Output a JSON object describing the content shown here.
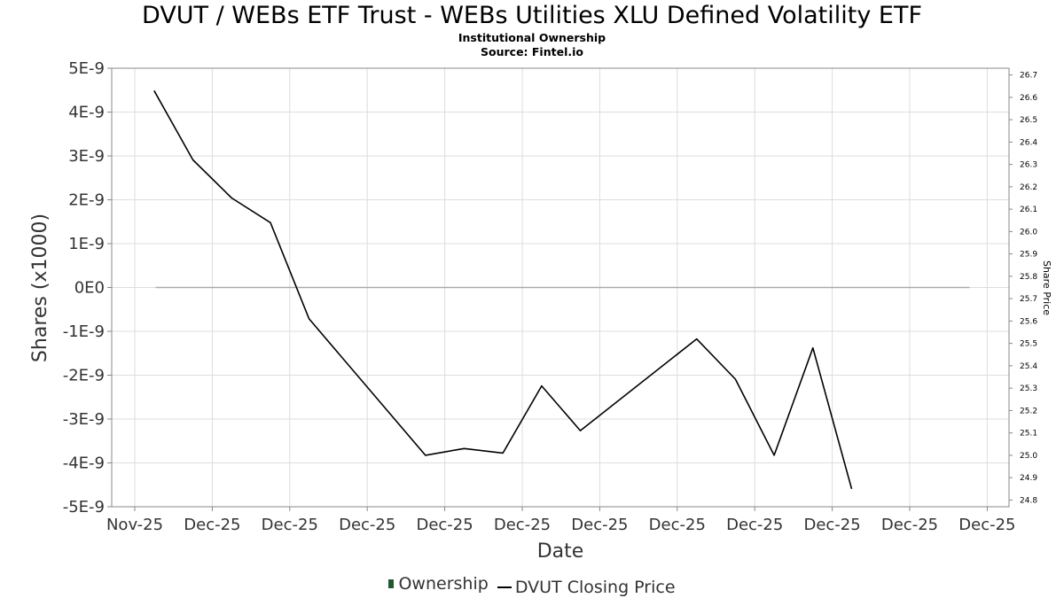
{
  "title": "DVUT / WEBs ETF Trust - WEBs Utilities XLU Defined Volatility ETF",
  "subtitle": "Institutional Ownership",
  "source": "Source: Fintel.io",
  "chart_data": {
    "type": "line",
    "xlabel": "Date",
    "ylabel": "Shares (x1000)",
    "y2label": "Share Price",
    "x_tick_labels": [
      "Nov-25",
      "Dec-25",
      "Dec-25",
      "Dec-25",
      "Dec-25",
      "Dec-25",
      "Dec-25",
      "Dec-25",
      "Dec-25",
      "Dec-25",
      "Dec-25",
      "Dec-25"
    ],
    "y_tick_labels": [
      "5E-9",
      "4E-9",
      "3E-9",
      "2E-9",
      "1E-9",
      "0E0",
      "-1E-9",
      "-2E-9",
      "-3E-9",
      "-4E-9",
      "-5E-9"
    ],
    "ylim": [
      -5e-09,
      5e-09
    ],
    "y2_tick_labels": [
      "24.8",
      "24.9",
      "25.0",
      "25.1",
      "25.2",
      "25.3",
      "25.4",
      "25.5",
      "25.6",
      "25.7",
      "25.8",
      "25.9",
      "26.0",
      "26.1",
      "26.2",
      "26.3",
      "26.4",
      "26.5",
      "26.6",
      "26.7"
    ],
    "y2lim": [
      24.77,
      26.73
    ],
    "grid": true,
    "legend_position": "bottom",
    "series": [
      {
        "name": "Ownership",
        "axis": "left",
        "color": "#1d5a2e",
        "x_index": [
          0.27,
          10.77
        ],
        "values": [
          0,
          0
        ]
      },
      {
        "name": "DVUT Closing Price",
        "axis": "right",
        "color": "#000000",
        "x_index": [
          0.25,
          0.75,
          1.25,
          1.75,
          2.25,
          3.75,
          4.25,
          4.75,
          5.25,
          5.75,
          7.25,
          7.75,
          8.25,
          8.75,
          9.25
        ],
        "values": [
          26.63,
          26.32,
          26.15,
          26.04,
          25.61,
          25.0,
          25.03,
          25.01,
          25.31,
          25.11,
          25.52,
          25.34,
          25.0,
          25.48,
          24.85
        ]
      }
    ]
  }
}
